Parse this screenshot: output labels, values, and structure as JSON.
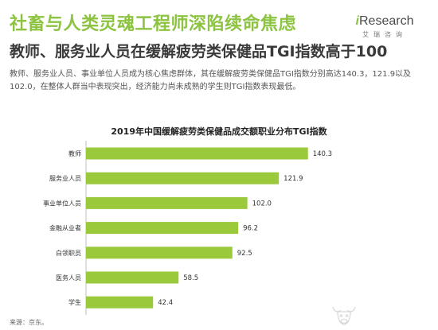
{
  "header": {
    "title": "社畜与人类灵魂工程师深陷续命焦虑",
    "subtitle": "教师、服务业人员在缓解疲劳类保健品TGI指数高于100",
    "description": "教师、服务业人员、事业单位人员成为核心焦虑群体，其在缓解疲劳类保健品TGI指数分别高达140.3，121.9以及102.0，在整体人群当中表现突出，经济能力尚未成熟的学生则TGI指数表现最低。"
  },
  "logo": {
    "brand_i": "i",
    "brand_rest": "Research",
    "sub": "艾瑞咨询"
  },
  "chart_data": {
    "type": "bar",
    "orientation": "horizontal",
    "title": "2019年中国缓解疲劳类保健品成交额职业分布TGI指数",
    "categories": [
      "教师",
      "服务业人员",
      "事业单位人员",
      "金融从业者",
      "白领职员",
      "医务人员",
      "学生"
    ],
    "values": [
      140.3,
      121.9,
      102.0,
      96.2,
      92.5,
      58.5,
      42.4
    ],
    "value_labels": [
      "140.3",
      "121.9",
      "102.0",
      "96.2",
      "92.5",
      "58.5",
      "42.4"
    ],
    "xlim": [
      0,
      150
    ],
    "bar_color": "#9ac93c",
    "grid": false
  },
  "footer": {
    "source": "来源：京东。"
  },
  "colors": {
    "accent": "#8cc341",
    "bar": "#9ac93c"
  }
}
